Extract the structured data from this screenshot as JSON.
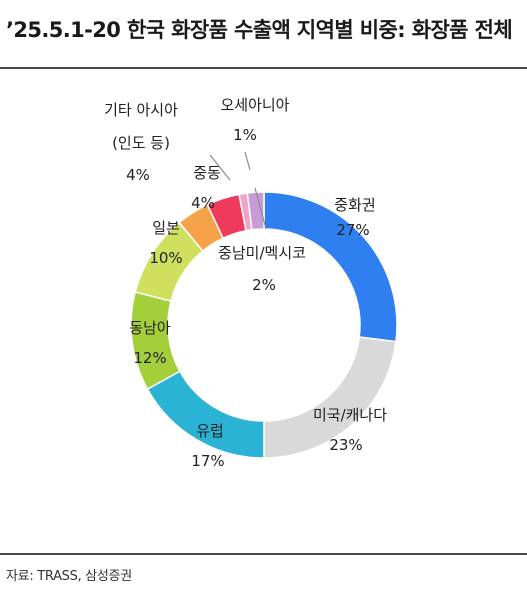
{
  "title": "’25.5.1-20 한국 화장품 수출액 지역별 비중: 화장품 전체",
  "source": "자료: TRASS, 삼성증권",
  "chart_data": {
    "type": "pie",
    "title": "’25.5.1-20 한국 화장품 수출액 지역별 비중: 화장품 전체",
    "unit": "%",
    "categories": [
      "중화권",
      "미국/캐나다",
      "유럽",
      "동남아",
      "일본",
      "중동",
      "기타 아시아 (인도 등)",
      "오세아니아",
      "중남미/멕시코"
    ],
    "values": [
      27,
      23,
      17,
      12,
      10,
      4,
      4,
      1,
      2
    ],
    "colors": [
      "#2f7ff0",
      "#d9d9d9",
      "#2bb3d6",
      "#a3cf3a",
      "#cfe05f",
      "#f5a24a",
      "#ee3b5b",
      "#f2a3c8",
      "#c79ad8"
    ],
    "label_names": [
      "중화권",
      "미국/캐나다",
      "유럽",
      "동남아",
      "일본",
      "중동",
      "기타 아시아",
      "(인도 등)",
      "오세아니아",
      "중남미/멕시코"
    ],
    "label_values": [
      "27%",
      "23%",
      "17%",
      "12%",
      "10%",
      "4%",
      "4%",
      "1%",
      "2%"
    ]
  }
}
